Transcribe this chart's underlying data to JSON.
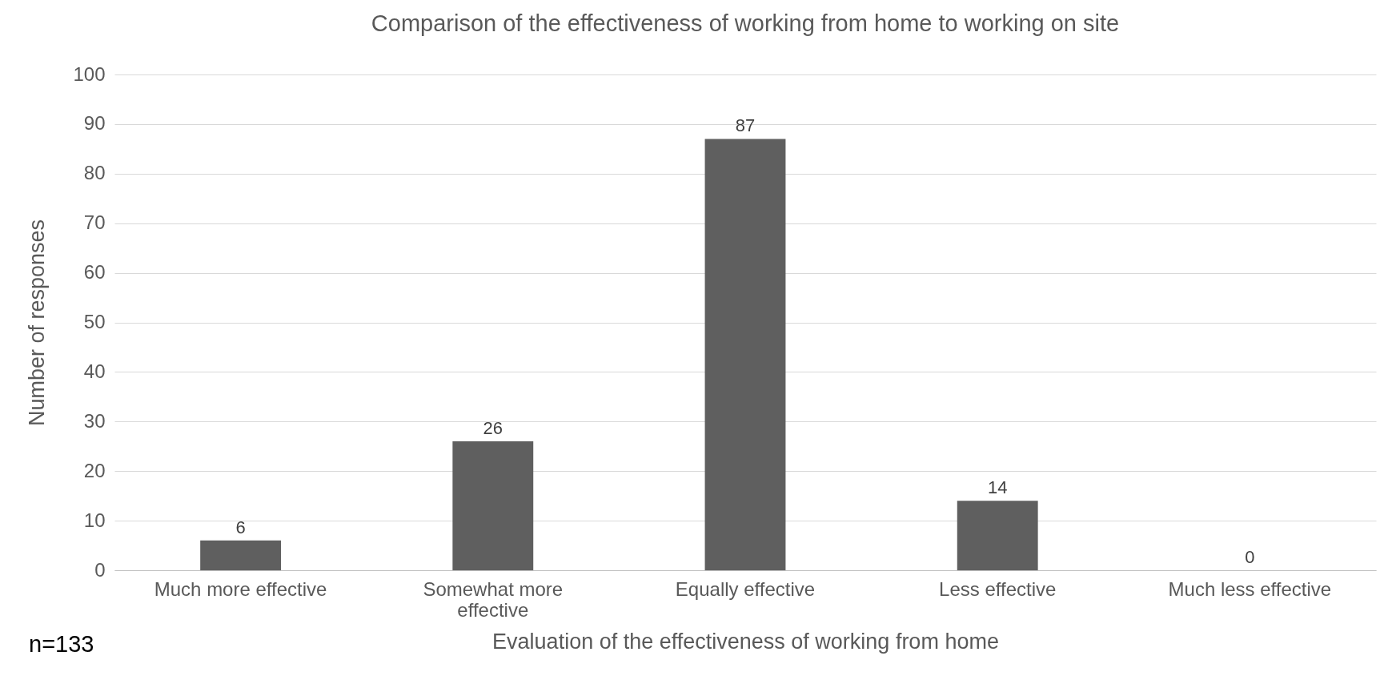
{
  "chart_data": {
    "type": "bar",
    "title": "Comparison of the effectiveness of working from home to working on site",
    "xlabel": "Evaluation of the effectiveness of working from home",
    "ylabel": "Number of responses",
    "categories": [
      "Much more effective",
      "Somewhat more effective",
      "Equally effective",
      "Less effective",
      "Much less effective"
    ],
    "values": [
      6,
      26,
      87,
      14,
      0
    ],
    "color": "#5f5f5f",
    "ylim": [
      0,
      100
    ],
    "yticks": [
      0,
      10,
      20,
      30,
      40,
      50,
      60,
      70,
      80,
      90,
      100
    ],
    "grid": "y",
    "data_labels": true,
    "annotations": [
      "n=133"
    ]
  }
}
